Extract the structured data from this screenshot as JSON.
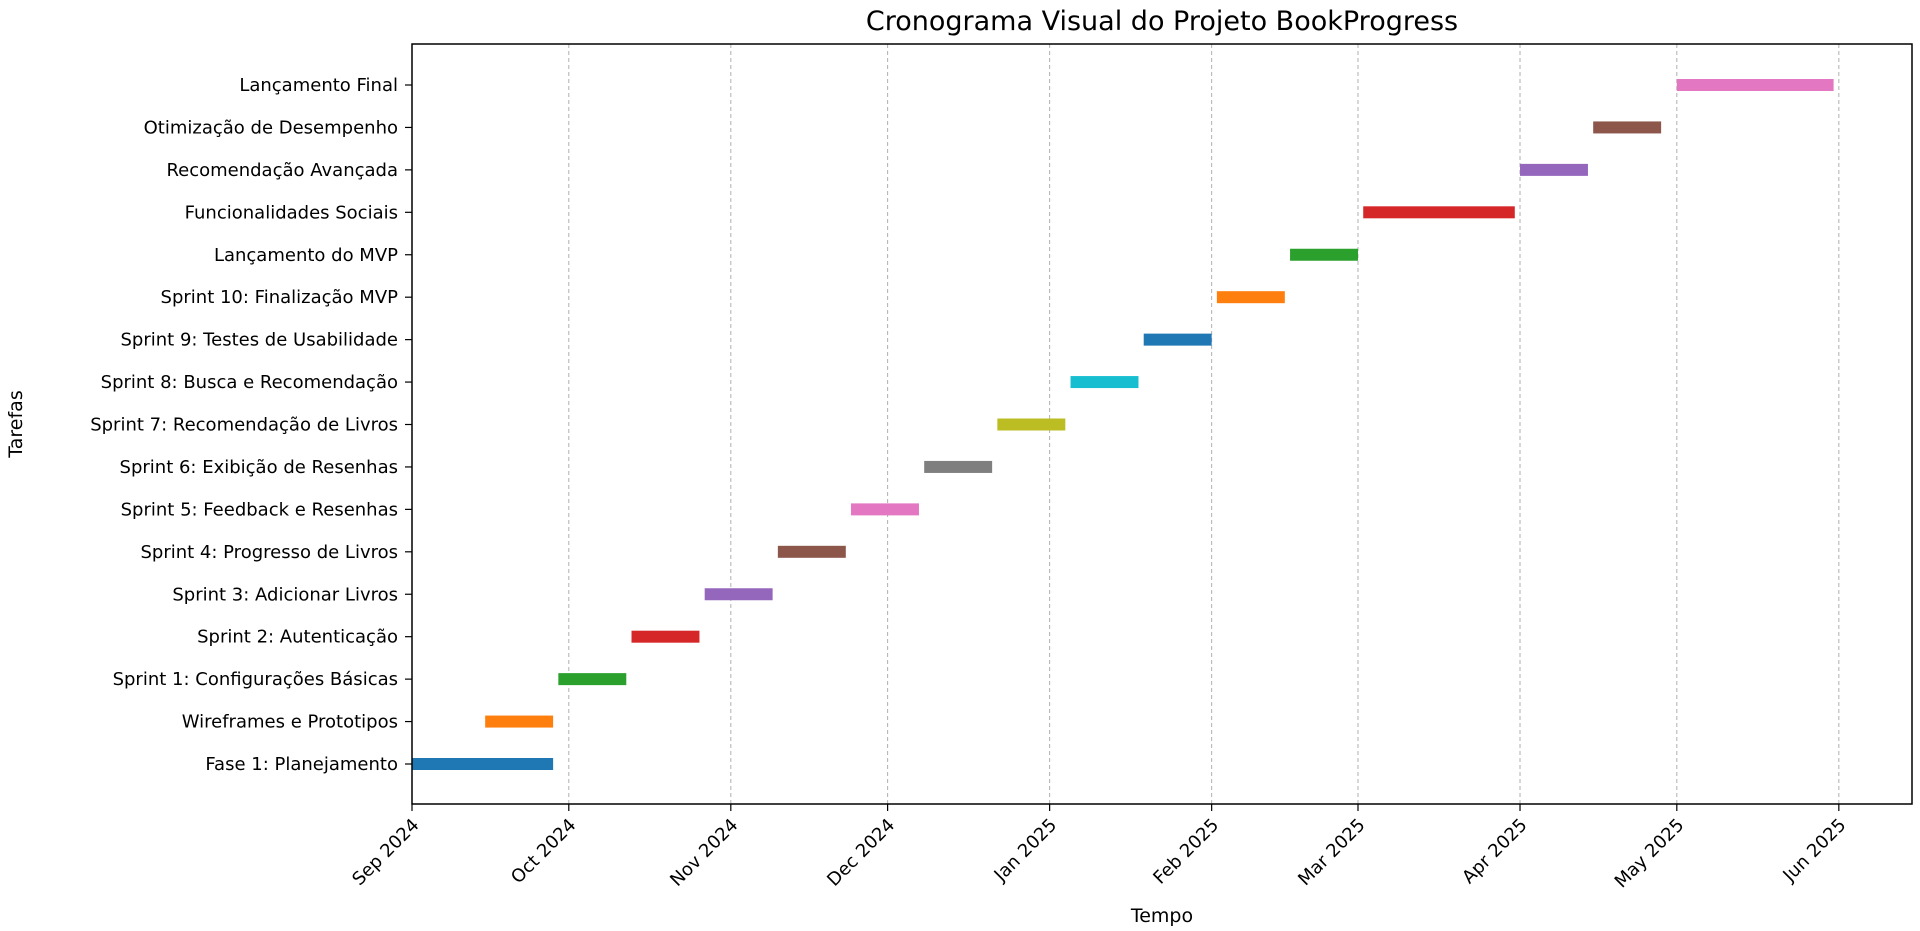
{
  "chart_data": {
    "type": "bar",
    "orientation": "horizontal-gantt",
    "title": "Cronograma Visual do Projeto BookProgress",
    "xlabel": "Tempo",
    "ylabel": "Tarefas",
    "x_range": [
      "2024-09-01",
      "2025-06-15"
    ],
    "x_ticks": [
      {
        "date": "2024-09-01",
        "label": "Sep 2024"
      },
      {
        "date": "2024-10-01",
        "label": "Oct 2024"
      },
      {
        "date": "2024-11-01",
        "label": "Nov 2024"
      },
      {
        "date": "2024-12-01",
        "label": "Dec 2024"
      },
      {
        "date": "2025-01-01",
        "label": "Jan 2025"
      },
      {
        "date": "2025-02-01",
        "label": "Feb 2025"
      },
      {
        "date": "2025-03-01",
        "label": "Mar 2025"
      },
      {
        "date": "2025-04-01",
        "label": "Apr 2025"
      },
      {
        "date": "2025-05-01",
        "label": "May 2025"
      },
      {
        "date": "2025-06-01",
        "label": "Jun 2025"
      }
    ],
    "grid": "vertical-dashed",
    "tasks": [
      {
        "name": "Fase 1: Planejamento",
        "start": "2024-09-01",
        "end": "2024-09-28",
        "color": "#1f77b4"
      },
      {
        "name": "Wireframes e Prototipos",
        "start": "2024-09-15",
        "end": "2024-09-28",
        "color": "#ff7f0e"
      },
      {
        "name": "Sprint 1: Configurações Básicas",
        "start": "2024-09-29",
        "end": "2024-10-12",
        "color": "#2ca02c"
      },
      {
        "name": "Sprint 2: Autenticação",
        "start": "2024-10-13",
        "end": "2024-10-26",
        "color": "#d62728"
      },
      {
        "name": "Sprint 3: Adicionar Livros",
        "start": "2024-10-27",
        "end": "2024-11-09",
        "color": "#9467bd"
      },
      {
        "name": "Sprint 4: Progresso de Livros",
        "start": "2024-11-10",
        "end": "2024-11-23",
        "color": "#8c564b"
      },
      {
        "name": "Sprint 5: Feedback e Resenhas",
        "start": "2024-11-24",
        "end": "2024-12-07",
        "color": "#e377c2"
      },
      {
        "name": "Sprint 6: Exibição de Resenhas",
        "start": "2024-12-08",
        "end": "2024-12-21",
        "color": "#7f7f7f"
      },
      {
        "name": "Sprint 7: Recomendação de Livros",
        "start": "2024-12-22",
        "end": "2025-01-04",
        "color": "#bcbd22"
      },
      {
        "name": "Sprint 8: Busca e Recomendação",
        "start": "2025-01-05",
        "end": "2025-01-18",
        "color": "#17becf"
      },
      {
        "name": "Sprint 9: Testes de Usabilidade",
        "start": "2025-01-19",
        "end": "2025-02-01",
        "color": "#1f77b4"
      },
      {
        "name": "Sprint 10: Finalização MVP",
        "start": "2025-02-02",
        "end": "2025-02-15",
        "color": "#ff7f0e"
      },
      {
        "name": "Lançamento do MVP",
        "start": "2025-02-16",
        "end": "2025-03-01",
        "color": "#2ca02c"
      },
      {
        "name": "Funcionalidades Sociais",
        "start": "2025-03-02",
        "end": "2025-03-31",
        "color": "#d62728"
      },
      {
        "name": "Recomendação Avançada",
        "start": "2025-04-01",
        "end": "2025-04-14",
        "color": "#9467bd"
      },
      {
        "name": "Otimização de Desempenho",
        "start": "2025-04-15",
        "end": "2025-04-28",
        "color": "#8c564b"
      },
      {
        "name": "Lançamento Final",
        "start": "2025-05-01",
        "end": "2025-05-31",
        "color": "#e377c2"
      }
    ]
  }
}
